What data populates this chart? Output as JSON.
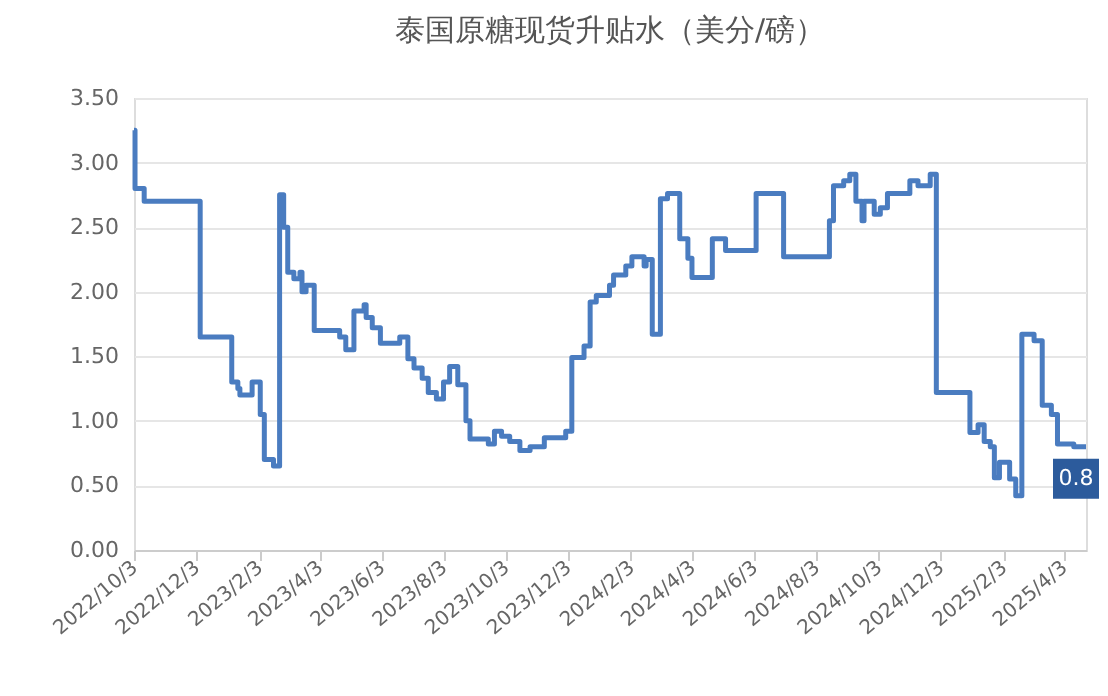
{
  "chart_data": {
    "type": "step",
    "title": "泰国原糖现货升贴水（美分/磅）",
    "x": [
      "2022-10-03",
      "2022-10-04",
      "2022-10-13",
      "2022-12-07",
      "2023-01-07",
      "2023-01-13",
      "2023-01-15",
      "2023-01-27",
      "2023-02-04",
      "2023-02-08",
      "2023-02-17",
      "2023-02-23",
      "2023-02-27",
      "2023-03-03",
      "2023-03-09",
      "2023-03-15",
      "2023-03-17",
      "2023-03-21",
      "2023-03-29",
      "2023-04-23",
      "2023-04-29",
      "2023-05-07",
      "2023-05-17",
      "2023-05-19",
      "2023-05-25",
      "2023-06-02",
      "2023-06-21",
      "2023-06-29",
      "2023-07-05",
      "2023-07-13",
      "2023-07-19",
      "2023-07-27",
      "2023-08-03",
      "2023-08-09",
      "2023-08-17",
      "2023-08-25",
      "2023-08-29",
      "2023-09-16",
      "2023-09-22",
      "2023-09-29",
      "2023-10-07",
      "2023-10-17",
      "2023-10-27",
      "2023-11-10",
      "2023-12-01",
      "2023-12-07",
      "2023-12-19",
      "2023-12-25",
      "2023-12-31",
      "2024-01-13",
      "2024-01-17",
      "2024-01-29",
      "2024-02-04",
      "2024-02-16",
      "2024-02-18",
      "2024-02-24",
      "2024-03-03",
      "2024-03-10",
      "2024-03-22",
      "2024-03-30",
      "2024-04-03",
      "2024-04-23",
      "2024-05-06",
      "2024-06-05",
      "2024-07-02",
      "2024-08-16",
      "2024-08-20",
      "2024-08-30",
      "2024-09-05",
      "2024-09-11",
      "2024-09-17",
      "2024-09-19",
      "2024-09-29",
      "2024-10-05",
      "2024-10-12",
      "2024-11-03",
      "2024-11-11",
      "2024-11-23",
      "2024-11-29",
      "2025-01-01",
      "2025-01-09",
      "2025-01-15",
      "2025-01-21",
      "2025-01-25",
      "2025-01-30",
      "2025-02-09",
      "2025-02-15",
      "2025-02-21",
      "2025-03-05",
      "2025-03-13",
      "2025-03-22",
      "2025-03-28",
      "2025-04-13",
      "2025-04-25"
    ],
    "series": [
      {
        "color": "#4a7cc0",
        "values": [
          3.25,
          2.8,
          2.7,
          1.65,
          1.3,
          1.25,
          1.2,
          1.3,
          1.05,
          0.7,
          0.65,
          2.75,
          2.5,
          2.15,
          2.1,
          2.15,
          2.0,
          2.05,
          1.7,
          1.65,
          1.55,
          1.85,
          1.9,
          1.8,
          1.72,
          1.6,
          1.65,
          1.48,
          1.41,
          1.33,
          1.22,
          1.17,
          1.3,
          1.42,
          1.28,
          1.0,
          0.86,
          0.82,
          0.92,
          0.88,
          0.84,
          0.77,
          0.8,
          0.87,
          0.92,
          1.49,
          1.58,
          1.92,
          1.97,
          2.05,
          2.13,
          2.2,
          2.27,
          2.2,
          2.25,
          1.67,
          2.72,
          2.76,
          2.41,
          2.26,
          2.11,
          2.41,
          2.32,
          2.76,
          2.27,
          2.55,
          2.82,
          2.86,
          2.91,
          2.7,
          2.55,
          2.7,
          2.6,
          2.65,
          2.76,
          2.86,
          2.82,
          2.91,
          1.22,
          0.91,
          0.97,
          0.84,
          0.8,
          0.56,
          0.68,
          0.55,
          0.42,
          1.67,
          1.62,
          1.12,
          1.05,
          0.82,
          0.8,
          0.8
        ]
      }
    ],
    "xlim": [
      "2022-10-03",
      "2025-04-25"
    ],
    "xticks": [
      {
        "value": "2022-10-03",
        "label": "2022/10/3"
      },
      {
        "value": "2022-12-03",
        "label": "2022/12/3"
      },
      {
        "value": "2023-02-03",
        "label": "2023/2/3"
      },
      {
        "value": "2023-04-03",
        "label": "2023/4/3"
      },
      {
        "value": "2023-06-03",
        "label": "2023/6/3"
      },
      {
        "value": "2023-08-03",
        "label": "2023/8/3"
      },
      {
        "value": "2023-10-03",
        "label": "2023/10/3"
      },
      {
        "value": "2023-12-03",
        "label": "2023/12/3"
      },
      {
        "value": "2024-02-03",
        "label": "2024/2/3"
      },
      {
        "value": "2024-04-03",
        "label": "2024/4/3"
      },
      {
        "value": "2024-06-03",
        "label": "2024/6/3"
      },
      {
        "value": "2024-08-03",
        "label": "2024/8/3"
      },
      {
        "value": "2024-10-03",
        "label": "2024/10/3"
      },
      {
        "value": "2024-12-03",
        "label": "2024/12/3"
      },
      {
        "value": "2025-02-03",
        "label": "2025/2/3"
      },
      {
        "value": "2025-04-03",
        "label": "2025/4/3"
      }
    ],
    "ylim": [
      0,
      3.5
    ],
    "yticks": [
      {
        "value": 0,
        "label": "0.00"
      },
      {
        "value": 0.5,
        "label": "0.50"
      },
      {
        "value": 1,
        "label": "1.00"
      },
      {
        "value": 1.5,
        "label": "1.50"
      },
      {
        "value": 2,
        "label": "2.00"
      },
      {
        "value": 2.5,
        "label": "2.50"
      },
      {
        "value": 3,
        "label": "3.00"
      },
      {
        "value": 3.5,
        "label": "3.50"
      }
    ],
    "grid": "y",
    "annotations": [
      {
        "text": "0.8",
        "x": "2025-04-25",
        "y": 0.8
      }
    ]
  }
}
